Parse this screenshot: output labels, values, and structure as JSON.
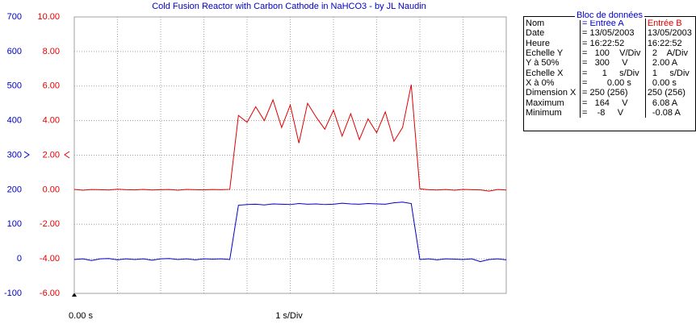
{
  "chart_data": {
    "type": "line",
    "title": "Cold Fusion Reactor with Carbon Cathode in NaHCO3 - by JL Naudin",
    "x_start_label": "0.00 s",
    "x_scale_label": "1 s/Div",
    "x": [
      0,
      0.2,
      0.4,
      0.6,
      0.8,
      1,
      1.2,
      1.4,
      1.6,
      1.8,
      2,
      2.2,
      2.4,
      2.6,
      2.8,
      3,
      3.2,
      3.4,
      3.6,
      3.8,
      4,
      4.2,
      4.4,
      4.6,
      4.8,
      5,
      5.2,
      5.4,
      5.6,
      5.8,
      6,
      6.2,
      6.4,
      6.6,
      6.8,
      7,
      7.2,
      7.4,
      7.6,
      7.8,
      8,
      8.2,
      8.4,
      8.6,
      8.8,
      9,
      9.2,
      9.4,
      9.6,
      9.8,
      10
    ],
    "xlim": [
      0,
      10
    ],
    "xticks": [
      0,
      1,
      2,
      3,
      4,
      5,
      6,
      7,
      8,
      9,
      10
    ],
    "ylim": [
      -100,
      700
    ],
    "yticks": [
      -100,
      0,
      100,
      200,
      300,
      400,
      500,
      600,
      700
    ],
    "y2lim": [
      -6,
      10
    ],
    "y2ticks": [
      {
        "value": -6,
        "label": "-6.00"
      },
      {
        "value": -4,
        "label": "-4.00"
      },
      {
        "value": -2,
        "label": "-2.00"
      },
      {
        "value": 0,
        "label": "0.00"
      },
      {
        "value": 2,
        "label": "2.00"
      },
      {
        "value": 4,
        "label": "4.00"
      },
      {
        "value": 6,
        "label": "6.00"
      },
      {
        "value": 8,
        "label": "8.00"
      },
      {
        "value": 10,
        "label": "10.00"
      }
    ],
    "grid": true,
    "series": [
      {
        "color": "#0000c8",
        "axis": "y",
        "values": [
          -2,
          0,
          -5,
          0,
          1,
          -3,
          0,
          -2,
          0,
          -4,
          0,
          1,
          -2,
          0,
          -3,
          0,
          -1,
          0,
          -2,
          155,
          157,
          158,
          156,
          159,
          158,
          157,
          160,
          158,
          159,
          157,
          158,
          161,
          159,
          158,
          160,
          159,
          158,
          162,
          164,
          160,
          -2,
          0,
          -3,
          0,
          -1,
          -2,
          0,
          -8,
          -2,
          0,
          -3
        ]
      },
      {
        "color": "#e00000",
        "axis": "y2",
        "values": [
          0.02,
          -0.03,
          0.01,
          0,
          -0.02,
          0.03,
          0,
          -0.01,
          0.02,
          -0.02,
          0,
          0.01,
          -0.03,
          0.02,
          0,
          -0.01,
          0.01,
          0,
          0.02,
          4.3,
          3.9,
          4.8,
          4.0,
          5.2,
          3.6,
          4.9,
          2.7,
          5.0,
          4.2,
          3.5,
          4.6,
          3.1,
          4.4,
          2.9,
          4.1,
          3.3,
          4.5,
          2.8,
          3.6,
          6.08,
          0.05,
          0,
          -0.02,
          0.01,
          -0.03,
          0.02,
          0,
          -0.01,
          -0.08,
          0.01,
          -0.02
        ]
      }
    ]
  },
  "data_block": {
    "title": "Bloc de données",
    "rows": [
      [
        "Nom",
        "= Entrée A",
        "Entrée B"
      ],
      [
        "Date",
        "= 13/05/2003",
        "13/05/2003"
      ],
      [
        "Heure",
        "= 16:22:52",
        "16:22:52"
      ],
      [
        "Echelle Y",
        "=   100    V/Div",
        "  2    A/Div"
      ],
      [
        "Y à 50%",
        "=   300     V",
        "  2.00 A"
      ],
      [
        "Echelle X",
        "=      1     s/Div",
        "  1     s/Div"
      ],
      [
        "X à 0%",
        "=        0.00 s",
        "  0.00 s"
      ],
      [
        "Dimension X",
        "= 250 (256)",
        "250 (256)"
      ],
      [
        "Maximum",
        "=   164     V",
        "  6.08 A"
      ],
      [
        "Minimum",
        "=    -8     V",
        "  -0.08 A"
      ]
    ]
  }
}
